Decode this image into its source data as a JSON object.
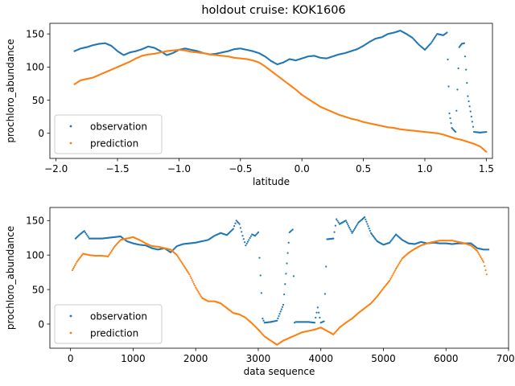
{
  "figure": {
    "title": "holdout cruise: KOK1606"
  },
  "chart_data": [
    {
      "type": "scatter",
      "xlabel": "latitude",
      "ylabel": "prochloro_abundance",
      "xlim": [
        -2.05,
        1.55
      ],
      "ylim": [
        -38,
        166
      ],
      "xticks": [
        -2.0,
        -1.5,
        -1.0,
        -0.5,
        0.0,
        0.5,
        1.0,
        1.5
      ],
      "xtick_labels": [
        "−2.0",
        "−1.5",
        "−1.0",
        "−0.5",
        "0.0",
        "0.5",
        "1.0",
        "1.5"
      ],
      "yticks": [
        0,
        50,
        100,
        150
      ],
      "ytick_labels": [
        "0",
        "50",
        "100",
        "150"
      ],
      "legend": {
        "position": "lower-left",
        "entries": [
          "observation",
          "prediction"
        ]
      },
      "grid": false,
      "series": [
        {
          "name": "observation",
          "color": "#1f77b4",
          "x": [
            -1.85,
            -1.8,
            -1.75,
            -1.7,
            -1.65,
            -1.6,
            -1.55,
            -1.5,
            -1.45,
            -1.4,
            -1.35,
            -1.3,
            -1.25,
            -1.2,
            -1.15,
            -1.1,
            -1.05,
            -1.0,
            -0.95,
            -0.9,
            -0.85,
            -0.8,
            -0.75,
            -0.7,
            -0.65,
            -0.6,
            -0.55,
            -0.5,
            -0.45,
            -0.4,
            -0.35,
            -0.3,
            -0.25,
            -0.2,
            -0.15,
            -0.1,
            -0.05,
            0.0,
            0.05,
            0.1,
            0.15,
            0.2,
            0.25,
            0.3,
            0.35,
            0.4,
            0.45,
            0.5,
            0.55,
            0.6,
            0.65,
            0.7,
            0.75,
            0.8,
            0.85,
            0.9,
            0.95,
            1.0,
            1.05,
            1.1,
            1.15,
            1.18,
            1.2,
            1.22,
            1.25,
            1.28,
            1.3,
            1.32,
            1.35,
            1.4,
            1.45,
            1.5
          ],
          "y": [
            124,
            128,
            130,
            133,
            135,
            136,
            132,
            124,
            118,
            122,
            124,
            127,
            131,
            129,
            124,
            118,
            121,
            126,
            128,
            126,
            124,
            121,
            119,
            120,
            122,
            124,
            127,
            128,
            126,
            124,
            121,
            116,
            109,
            104,
            107,
            112,
            110,
            113,
            116,
            117,
            114,
            113,
            116,
            119,
            121,
            124,
            127,
            132,
            138,
            143,
            145,
            150,
            152,
            155,
            150,
            144,
            134,
            126,
            136,
            150,
            148,
            152,
            30,
            8,
            2,
            130,
            135,
            136,
            56,
            2,
            1,
            2
          ]
        },
        {
          "name": "prediction",
          "color": "#ff7f0e",
          "x": [
            -1.85,
            -1.8,
            -1.75,
            -1.7,
            -1.65,
            -1.6,
            -1.55,
            -1.5,
            -1.45,
            -1.4,
            -1.35,
            -1.3,
            -1.25,
            -1.2,
            -1.15,
            -1.1,
            -1.05,
            -1.0,
            -0.95,
            -0.9,
            -0.85,
            -0.8,
            -0.75,
            -0.7,
            -0.65,
            -0.6,
            -0.55,
            -0.5,
            -0.45,
            -0.4,
            -0.35,
            -0.3,
            -0.25,
            -0.2,
            -0.15,
            -0.1,
            -0.05,
            0.0,
            0.05,
            0.1,
            0.15,
            0.2,
            0.25,
            0.3,
            0.35,
            0.4,
            0.45,
            0.5,
            0.55,
            0.6,
            0.65,
            0.7,
            0.75,
            0.8,
            0.85,
            0.9,
            0.95,
            1.0,
            1.05,
            1.1,
            1.15,
            1.2,
            1.25,
            1.3,
            1.35,
            1.4,
            1.45,
            1.5
          ],
          "y": [
            74,
            80,
            82,
            84,
            88,
            92,
            96,
            100,
            104,
            108,
            113,
            117,
            119,
            120,
            122,
            124,
            125,
            126,
            125,
            123,
            122,
            121,
            119,
            118,
            117,
            116,
            114,
            113,
            112,
            110,
            107,
            101,
            94,
            87,
            80,
            73,
            66,
            58,
            52,
            46,
            40,
            36,
            32,
            28,
            25,
            22,
            20,
            17,
            15,
            13,
            11,
            9,
            8,
            6,
            5,
            4,
            3,
            2,
            1,
            0,
            -2,
            -5,
            -8,
            -10,
            -13,
            -16,
            -20,
            -28
          ]
        }
      ]
    },
    {
      "type": "scatter",
      "xlabel": "data sequence",
      "ylabel": "prochloro_abundance",
      "xlim": [
        -330,
        7000
      ],
      "ylim": [
        -35,
        169
      ],
      "xticks": [
        0,
        1000,
        2000,
        3000,
        4000,
        5000,
        6000,
        7000
      ],
      "xtick_labels": [
        "0",
        "1000",
        "2000",
        "3000",
        "4000",
        "5000",
        "6000",
        "7000"
      ],
      "yticks": [
        0,
        50,
        100,
        150
      ],
      "ytick_labels": [
        "0",
        "50",
        "100",
        "150"
      ],
      "legend": {
        "position": "lower-left",
        "entries": [
          "observation",
          "prediction"
        ]
      },
      "grid": false,
      "series": [
        {
          "name": "observation",
          "color": "#1f77b4",
          "x": [
            80,
            150,
            220,
            300,
            400,
            500,
            600,
            700,
            800,
            900,
            1000,
            1100,
            1200,
            1300,
            1400,
            1500,
            1600,
            1700,
            1800,
            1900,
            2000,
            2100,
            2200,
            2300,
            2400,
            2500,
            2600,
            2650,
            2700,
            2750,
            2800,
            2850,
            2900,
            2950,
            3000,
            3020,
            3050,
            3070,
            3100,
            3200,
            3300,
            3400,
            3500,
            3550,
            3580,
            3600,
            3700,
            3800,
            3900,
            3950,
            4000,
            4050,
            4100,
            4200,
            4250,
            4300,
            4400,
            4500,
            4600,
            4700,
            4800,
            4900,
            5000,
            5100,
            5200,
            5300,
            5400,
            5500,
            5600,
            5700,
            5800,
            5900,
            6000,
            6100,
            6200,
            6300,
            6400,
            6500,
            6600,
            6680
          ],
          "y": [
            124,
            130,
            135,
            124,
            124,
            124,
            125,
            126,
            127,
            120,
            117,
            115,
            114,
            110,
            108,
            110,
            104,
            113,
            116,
            117,
            118,
            120,
            122,
            128,
            132,
            129,
            138,
            150,
            145,
            128,
            114,
            122,
            130,
            128,
            133,
            96,
            45,
            8,
            2,
            3,
            5,
            28,
            133,
            137,
            2,
            3,
            3,
            3,
            2,
            24,
            2,
            4,
            123,
            124,
            152,
            145,
            150,
            132,
            147,
            155,
            132,
            120,
            115,
            118,
            130,
            122,
            117,
            116,
            119,
            117,
            118,
            117,
            117,
            116,
            117,
            117,
            117,
            110,
            108,
            108
          ]
        },
        {
          "name": "prediction",
          "color": "#ff7f0e",
          "x": [
            30,
            100,
            200,
            300,
            400,
            500,
            600,
            700,
            800,
            900,
            1000,
            1100,
            1200,
            1300,
            1400,
            1500,
            1600,
            1700,
            1800,
            1900,
            2000,
            2100,
            2200,
            2300,
            2400,
            2500,
            2600,
            2700,
            2800,
            2900,
            3000,
            3100,
            3200,
            3300,
            3400,
            3500,
            3600,
            3700,
            3800,
            3900,
            4000,
            4100,
            4200,
            4300,
            4400,
            4500,
            4600,
            4700,
            4800,
            4900,
            5000,
            5100,
            5200,
            5300,
            5400,
            5500,
            5600,
            5700,
            5800,
            5900,
            6000,
            6100,
            6200,
            6300,
            6400,
            6500,
            6600,
            6650
          ],
          "y": [
            78,
            90,
            102,
            100,
            99,
            99,
            98,
            112,
            122,
            124,
            126,
            122,
            117,
            113,
            112,
            110,
            108,
            100,
            86,
            72,
            53,
            38,
            33,
            33,
            30,
            23,
            16,
            14,
            9,
            1,
            -8,
            -18,
            -24,
            -30,
            -24,
            -20,
            -16,
            -12,
            -10,
            -8,
            -5,
            -10,
            -15,
            -5,
            2,
            8,
            16,
            23,
            30,
            40,
            52,
            63,
            80,
            95,
            103,
            109,
            114,
            117,
            119,
            121,
            121,
            121,
            119,
            117,
            114,
            106,
            90,
            72
          ]
        }
      ]
    }
  ]
}
